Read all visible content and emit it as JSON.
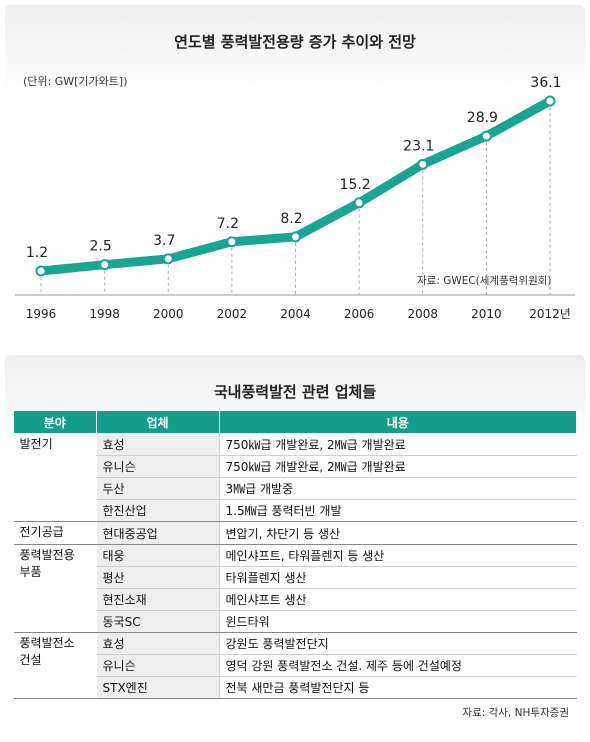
{
  "chart_data": {
    "type": "line",
    "title": "연도별 풍력발전용량 증가 추이와 전망",
    "unit": "(단위: GW[기가와트])",
    "source": "자료: GWEC(세계풍력위원회)",
    "x": [
      "1996",
      "1998",
      "2000",
      "2002",
      "2004",
      "2006",
      "2008",
      "2010",
      "2012년"
    ],
    "values": [
      1.2,
      2.5,
      3.7,
      7.2,
      8.2,
      15.2,
      23.1,
      28.9,
      36.1
    ],
    "value_labels": [
      "1.2",
      "2.5",
      "3.7",
      "7.2",
      "8.2",
      "15.2",
      "23.1",
      "28.9",
      "36.1"
    ],
    "ylim": [
      0,
      40
    ],
    "grid": "vertical dashed lines",
    "color": "#1aa593"
  },
  "table": {
    "title": "국내풍력발전 관련 업체들",
    "headers": [
      "분야",
      "업체",
      "내용"
    ],
    "rows": [
      {
        "field": "발전기",
        "company": "효성",
        "content": "750㎾급 개발완료, 2㎿급 개발완료"
      },
      {
        "field": "",
        "company": "유니슨",
        "content": "750㎾급 개발완료, 2㎿급 개발완료"
      },
      {
        "field": "",
        "company": "두산",
        "content": "3㎿급 개발중"
      },
      {
        "field": "",
        "company": "한진산업",
        "content": "1.5㎿급 풍력터빈 개발"
      },
      {
        "field": "전기공급",
        "company": "현대중공업",
        "content": "변압기, 차단기 등 생산"
      },
      {
        "field": "풍력발전용 부품",
        "company": "태웅",
        "content": "메인샤프트, 타워플렌지 등 생산"
      },
      {
        "field": "",
        "company": "평산",
        "content": "타워플렌지 생산"
      },
      {
        "field": "",
        "company": "현진소재",
        "content": "메인샤프트 생산"
      },
      {
        "field": "",
        "company": "동국SC",
        "content": "윈드타워"
      },
      {
        "field": "풍력발전소 건설",
        "company": "효성",
        "content": "강원도 풍력발전단지"
      },
      {
        "field": "",
        "company": "유니슨",
        "content": "영덕 강원 풍력발전소 건설. 제주 등에 건설예정"
      },
      {
        "field": "",
        "company": "STX엔진",
        "content": "전북 새만금 풍력발전단지 등"
      }
    ],
    "source": "자료: 각사, NH투자증권"
  }
}
